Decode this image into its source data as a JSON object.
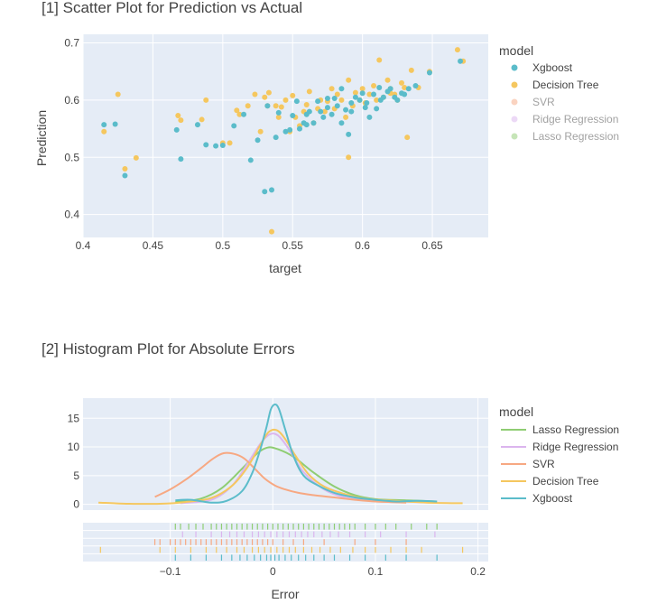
{
  "chart_data": [
    {
      "type": "scatter",
      "title": "[1] Scatter Plot for Prediction vs Actual",
      "xlabel": "target",
      "ylabel": "Prediction",
      "xlim": [
        0.4,
        0.69
      ],
      "ylim": [
        0.36,
        0.715
      ],
      "xticks": [
        0.4,
        0.45,
        0.5,
        0.55,
        0.6,
        0.65
      ],
      "xtick_labels": [
        "0.4",
        "0.45",
        "0.5",
        "0.55",
        "0.6",
        "0.65"
      ],
      "yticks": [
        0.4,
        0.5,
        0.6,
        0.7
      ],
      "ytick_labels": [
        "0.4",
        "0.5",
        "0.6",
        "0.7"
      ],
      "grid": true,
      "legend_title": "model",
      "legend_position": "right",
      "series": [
        {
          "name": "Xgboost",
          "color": "#5bbcca",
          "visible": true,
          "x": [
            0.415,
            0.423,
            0.43,
            0.467,
            0.47,
            0.482,
            0.488,
            0.495,
            0.5,
            0.508,
            0.515,
            0.52,
            0.525,
            0.53,
            0.532,
            0.535,
            0.538,
            0.54,
            0.545,
            0.55,
            0.553,
            0.555,
            0.558,
            0.56,
            0.562,
            0.565,
            0.568,
            0.57,
            0.572,
            0.575,
            0.578,
            0.58,
            0.582,
            0.585,
            0.588,
            0.59,
            0.592,
            0.595,
            0.598,
            0.6,
            0.603,
            0.605,
            0.608,
            0.61,
            0.613,
            0.615,
            0.618,
            0.62,
            0.623,
            0.625,
            0.628,
            0.63,
            0.633,
            0.638,
            0.648,
            0.67,
            0.585,
            0.575,
            0.56,
            0.548,
            0.592,
            0.602,
            0.612
          ],
          "y": [
            0.557,
            0.558,
            0.468,
            0.548,
            0.497,
            0.557,
            0.522,
            0.52,
            0.521,
            0.555,
            0.575,
            0.495,
            0.53,
            0.44,
            0.59,
            0.443,
            0.535,
            0.578,
            0.545,
            0.573,
            0.598,
            0.55,
            0.56,
            0.575,
            0.58,
            0.56,
            0.598,
            0.58,
            0.57,
            0.587,
            0.575,
            0.603,
            0.59,
            0.56,
            0.583,
            0.54,
            0.58,
            0.605,
            0.6,
            0.612,
            0.595,
            0.57,
            0.61,
            0.585,
            0.6,
            0.605,
            0.615,
            0.62,
            0.605,
            0.6,
            0.612,
            0.61,
            0.62,
            0.625,
            0.648,
            0.668,
            0.62,
            0.603,
            0.557,
            0.548,
            0.595,
            0.587,
            0.622
          ]
        },
        {
          "name": "Decision Tree",
          "color": "#f5c75f",
          "visible": true,
          "x": [
            0.415,
            0.425,
            0.43,
            0.438,
            0.468,
            0.47,
            0.485,
            0.488,
            0.5,
            0.505,
            0.51,
            0.512,
            0.518,
            0.523,
            0.527,
            0.53,
            0.533,
            0.535,
            0.538,
            0.54,
            0.542,
            0.545,
            0.548,
            0.55,
            0.552,
            0.555,
            0.558,
            0.56,
            0.562,
            0.565,
            0.568,
            0.57,
            0.573,
            0.575,
            0.578,
            0.58,
            0.582,
            0.585,
            0.588,
            0.59,
            0.593,
            0.595,
            0.598,
            0.6,
            0.602,
            0.605,
            0.608,
            0.61,
            0.612,
            0.615,
            0.618,
            0.62,
            0.623,
            0.625,
            0.628,
            0.63,
            0.632,
            0.635,
            0.64,
            0.648,
            0.668,
            0.672,
            0.532,
            0.59,
            0.598,
            0.62
          ],
          "y": [
            0.545,
            0.61,
            0.48,
            0.499,
            0.573,
            0.565,
            0.566,
            0.6,
            0.525,
            0.525,
            0.582,
            0.575,
            0.59,
            0.61,
            0.545,
            0.605,
            0.613,
            0.37,
            0.59,
            0.57,
            0.588,
            0.6,
            0.545,
            0.608,
            0.57,
            0.555,
            0.58,
            0.592,
            0.615,
            0.56,
            0.585,
            0.6,
            0.58,
            0.598,
            0.62,
            0.585,
            0.61,
            0.6,
            0.57,
            0.5,
            0.59,
            0.613,
            0.6,
            0.62,
            0.595,
            0.61,
            0.625,
            0.6,
            0.67,
            0.605,
            0.635,
            0.62,
            0.61,
            0.6,
            0.63,
            0.622,
            0.535,
            0.652,
            0.622,
            0.65,
            0.688,
            0.668,
            0.59,
            0.635,
            0.6,
            0.612
          ]
        },
        {
          "name": "SVR",
          "color": "#f7a882",
          "visible": false,
          "x": [],
          "y": []
        },
        {
          "name": "Ridge Regression",
          "color": "#dbb5ee",
          "visible": false,
          "x": [],
          "y": []
        },
        {
          "name": "Lasso Regression",
          "color": "#8fcd73",
          "visible": false,
          "x": [],
          "y": []
        }
      ]
    },
    {
      "type": "line",
      "title": "[2] Histogram Plot for Absolute Errors",
      "xlabel": "Error",
      "ylabel": "",
      "xlim": [
        -0.185,
        0.21
      ],
      "ylim": [
        -1,
        18.5
      ],
      "xticks": [
        -0.1,
        0,
        0.1,
        0.2
      ],
      "xtick_labels": [
        "−0.1",
        "0",
        "0.1",
        "0.2"
      ],
      "yticks": [
        0,
        5,
        10,
        15
      ],
      "ytick_labels": [
        "0",
        "5",
        "10",
        "15"
      ],
      "grid": true,
      "legend_title": "model",
      "legend_position": "right",
      "series": [
        {
          "name": "Lasso Regression",
          "color": "#8fcd73",
          "x": [
            -0.095,
            -0.07,
            -0.05,
            -0.03,
            -0.015,
            -0.005,
            0.005,
            0.02,
            0.04,
            0.06,
            0.08,
            0.1,
            0.13,
            0.16
          ],
          "y": [
            0.4,
            1.0,
            2.8,
            6.2,
            8.9,
            9.9,
            9.6,
            8.3,
            5.5,
            3.1,
            1.6,
            0.9,
            0.7,
            0.5
          ],
          "rug": [
            -0.095,
            -0.09,
            -0.082,
            -0.075,
            -0.068,
            -0.06,
            -0.055,
            -0.05,
            -0.045,
            -0.04,
            -0.035,
            -0.03,
            -0.025,
            -0.02,
            -0.015,
            -0.01,
            -0.005,
            0,
            0.005,
            0.01,
            0.015,
            0.02,
            0.025,
            0.03,
            0.035,
            0.04,
            0.045,
            0.05,
            0.055,
            0.06,
            0.065,
            0.07,
            0.075,
            0.08,
            0.09,
            0.1,
            0.11,
            0.12,
            0.135,
            0.15,
            0.16
          ]
        },
        {
          "name": "Ridge Regression",
          "color": "#dbb5ee",
          "x": [
            -0.09,
            -0.06,
            -0.04,
            -0.025,
            -0.012,
            -0.003,
            0.005,
            0.015,
            0.03,
            0.05,
            0.07,
            0.09,
            0.12,
            0.16
          ],
          "y": [
            0.2,
            0.8,
            3.2,
            7.0,
            10.6,
            12.2,
            12.0,
            9.8,
            5.6,
            2.6,
            1.2,
            0.7,
            0.5,
            0.3
          ],
          "rug": [
            -0.088,
            -0.075,
            -0.06,
            -0.05,
            -0.042,
            -0.035,
            -0.028,
            -0.02,
            -0.014,
            -0.008,
            -0.002,
            0.004,
            0.01,
            0.016,
            0.022,
            0.028,
            0.034,
            0.04,
            0.048,
            0.056,
            0.064,
            0.075,
            0.09,
            0.105,
            0.13,
            0.158
          ]
        },
        {
          "name": "SVR",
          "color": "#f7a882",
          "x": [
            -0.115,
            -0.1,
            -0.085,
            -0.07,
            -0.058,
            -0.048,
            -0.038,
            -0.028,
            -0.018,
            -0.008,
            0.002,
            0.012,
            0.025,
            0.04,
            0.06,
            0.08,
            0.1,
            0.13
          ],
          "y": [
            1.3,
            2.6,
            4.3,
            6.3,
            8.0,
            8.9,
            8.8,
            8.0,
            6.3,
            4.5,
            3.3,
            2.6,
            2.0,
            1.6,
            1.2,
            0.8,
            0.5,
            0.3
          ],
          "rug": [
            -0.115,
            -0.11,
            -0.1,
            -0.095,
            -0.09,
            -0.085,
            -0.08,
            -0.075,
            -0.07,
            -0.065,
            -0.06,
            -0.055,
            -0.05,
            -0.045,
            -0.04,
            -0.035,
            -0.03,
            -0.025,
            -0.02,
            -0.015,
            -0.01,
            -0.005,
            0,
            0.01,
            0.02,
            0.03,
            0.05,
            0.08,
            0.1,
            0.13
          ]
        },
        {
          "name": "Decision Tree",
          "color": "#f5c75f",
          "x": [
            -0.17,
            -0.14,
            -0.11,
            -0.085,
            -0.06,
            -0.04,
            -0.025,
            -0.012,
            -0.004,
            0.004,
            0.012,
            0.022,
            0.035,
            0.05,
            0.07,
            0.09,
            0.12,
            0.15,
            0.185
          ],
          "y": [
            0.3,
            0.1,
            0.1,
            0.4,
            1.1,
            3.2,
            6.4,
            10.4,
            12.6,
            12.9,
            11.4,
            8.5,
            5.2,
            3.1,
            1.8,
            1.0,
            0.6,
            0.3,
            0.2
          ],
          "rug": [
            -0.168,
            -0.11,
            -0.095,
            -0.08,
            -0.065,
            -0.055,
            -0.045,
            -0.035,
            -0.028,
            -0.02,
            -0.014,
            -0.008,
            -0.002,
            0.004,
            0.01,
            0.016,
            0.022,
            0.03,
            0.038,
            0.046,
            0.056,
            0.066,
            0.078,
            0.09,
            0.1,
            0.115,
            0.13,
            0.145,
            0.185
          ]
        },
        {
          "name": "Xgboost",
          "color": "#5bbcca",
          "x": [
            -0.095,
            -0.08,
            -0.06,
            -0.045,
            -0.03,
            -0.02,
            -0.012,
            -0.006,
            -0.002,
            0.002,
            0.006,
            0.012,
            0.02,
            0.03,
            0.045,
            0.06,
            0.08,
            0.1,
            0.12,
            0.14,
            0.16
          ],
          "y": [
            0.7,
            0.8,
            0.3,
            0.6,
            2.3,
            5.5,
            9.7,
            13.6,
            16.5,
            17.4,
            16.6,
            13.1,
            8.5,
            5.0,
            3.2,
            2.0,
            1.2,
            0.8,
            0.5,
            0.6,
            0.5
          ],
          "rug": [
            -0.095,
            -0.08,
            -0.065,
            -0.05,
            -0.04,
            -0.032,
            -0.025,
            -0.018,
            -0.012,
            -0.006,
            -0.002,
            0.002,
            0.006,
            0.012,
            0.018,
            0.025,
            0.032,
            0.04,
            0.05,
            0.06,
            0.075,
            0.09,
            0.11,
            0.13,
            0.16
          ]
        }
      ]
    }
  ]
}
